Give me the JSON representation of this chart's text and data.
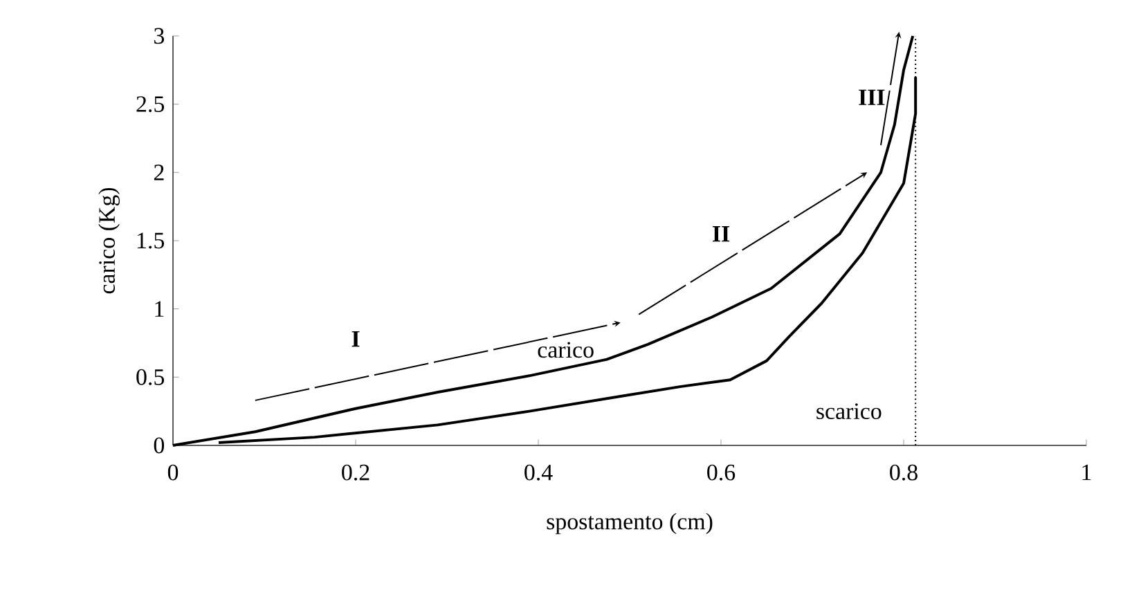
{
  "chart_data": {
    "type": "line",
    "xlabel": "spostamento (cm)",
    "ylabel": "carico (Kg)",
    "xlim": [
      0,
      1
    ],
    "ylim": [
      0,
      3
    ],
    "xticks": [
      0,
      0.2,
      0.4,
      0.6,
      0.8,
      1
    ],
    "yticks": [
      0,
      0.5,
      1,
      1.5,
      2,
      2.5,
      3
    ],
    "grid": false,
    "legend": false,
    "marker": "none",
    "line_style": "solid",
    "series": [
      {
        "name": "carico",
        "color": "#000000",
        "x": [
          0,
          0.09,
          0.2,
          0.29,
          0.39,
          0.475,
          0.52,
          0.59,
          0.655,
          0.73,
          0.775,
          0.79,
          0.8,
          0.81
        ],
        "values": [
          0,
          0.1,
          0.27,
          0.39,
          0.51,
          0.63,
          0.74,
          0.94,
          1.15,
          1.55,
          2.0,
          2.35,
          2.75,
          3.0
        ]
      },
      {
        "name": "scarico",
        "color": "#000000",
        "x": [
          0.813,
          0.813,
          0.8,
          0.755,
          0.71,
          0.675,
          0.65,
          0.61,
          0.555,
          0.49,
          0.39,
          0.29,
          0.155,
          0.05
        ],
        "values": [
          2.7,
          2.43,
          1.92,
          1.41,
          1.04,
          0.8,
          0.62,
          0.48,
          0.43,
          0.36,
          0.25,
          0.15,
          0.06,
          0.02
        ]
      }
    ],
    "ref_lines": [
      {
        "axis": "x",
        "value": 0.813,
        "line_style": "dotted",
        "color": "#000000"
      }
    ],
    "annotations": [
      "I",
      "II",
      "III"
    ]
  }
}
